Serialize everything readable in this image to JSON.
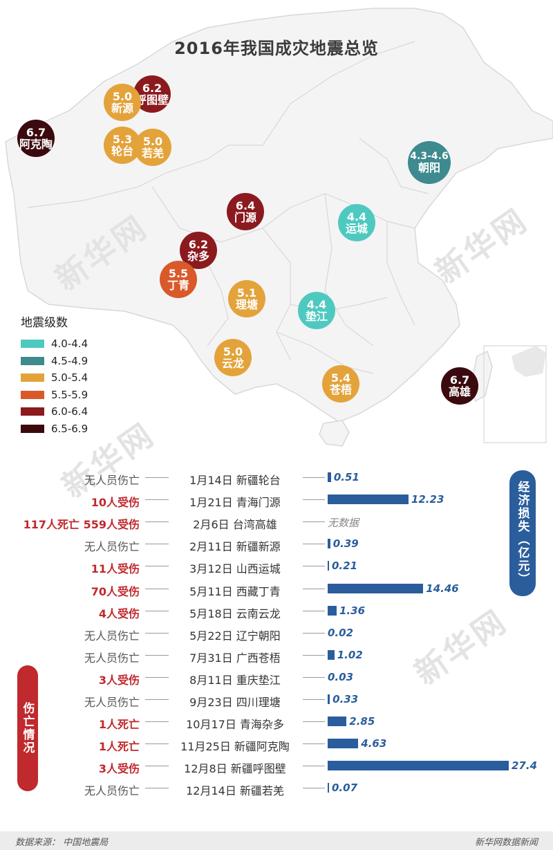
{
  "title": "2016年我国成灾地震总览",
  "watermarks": [
    "新华网",
    "新华网",
    "新华网",
    "新华网"
  ],
  "legend": {
    "title": "地震级数",
    "items": [
      {
        "label": "4.0-4.4",
        "color": "#4ec9c0"
      },
      {
        "label": "4.5-4.9",
        "color": "#3e8a8f"
      },
      {
        "label": "5.0-5.4",
        "color": "#e3a33a"
      },
      {
        "label": "5.5-5.9",
        "color": "#d9592a"
      },
      {
        "label": "6.0-6.4",
        "color": "#8b1a1f"
      },
      {
        "label": "6.5-6.9",
        "color": "#3b0a0e"
      }
    ]
  },
  "map_markers": [
    {
      "mag": "6.2",
      "place": "呼图壁",
      "level": 4
    },
    {
      "mag": "5.0",
      "place": "新源",
      "level": 2
    },
    {
      "mag": "6.7",
      "place": "阿克陶",
      "level": 5
    },
    {
      "mag": "5.3",
      "place": "轮台",
      "level": 2
    },
    {
      "mag": "5.0",
      "place": "若羌",
      "level": 2
    },
    {
      "mag": "4.3-4.6",
      "place": "朝阳",
      "level": 1
    },
    {
      "mag": "6.4",
      "place": "门源",
      "level": 4
    },
    {
      "mag": "4.4",
      "place": "运城",
      "level": 0
    },
    {
      "mag": "6.2",
      "place": "杂多",
      "level": 4
    },
    {
      "mag": "5.5",
      "place": "丁青",
      "level": 3
    },
    {
      "mag": "5.1",
      "place": "理塘",
      "level": 2
    },
    {
      "mag": "4.4",
      "place": "垫江",
      "level": 0
    },
    {
      "mag": "5.0",
      "place": "云龙",
      "level": 2
    },
    {
      "mag": "5.4",
      "place": "苍梧",
      "level": 2
    },
    {
      "mag": "6.7",
      "place": "高雄",
      "level": 5
    }
  ],
  "side_labels": {
    "economic": "经济损失（亿元）",
    "casualty": "伤亡情况"
  },
  "chart_data": {
    "type": "bar",
    "title": "2016年我国成灾地震总览",
    "series": [
      {
        "name": "经济损失（亿元）",
        "values": [
          0.51,
          12.23,
          null,
          0.39,
          0.21,
          14.46,
          1.36,
          0.02,
          1.02,
          0.03,
          0.33,
          2.85,
          4.63,
          27.4,
          0.07
        ]
      }
    ],
    "categories": [
      "1月14日 新疆轮台",
      "1月21日 青海门源",
      "2月6日 台湾高雄",
      "2月11日 新疆新源",
      "3月12日 山西运城",
      "5月11日 西藏丁青",
      "5月18日 云南云龙",
      "5月22日 辽宁朝阳",
      "7月31日 广西苍梧",
      "8月11日 重庆垫江",
      "9月23日 四川理塘",
      "10月17日 青海杂多",
      "11月25日 新疆阿克陶",
      "12月8日 新疆呼图壁",
      "12月14日 新疆若羌"
    ],
    "rows": [
      {
        "casualty": "无人员伤亡",
        "red": false,
        "event": "1月14日 新疆轮台",
        "loss": 0.51,
        "label": "0.51"
      },
      {
        "casualty": "10人受伤",
        "red": true,
        "event": "1月21日 青海门源",
        "loss": 12.23,
        "label": "12.23"
      },
      {
        "casualty": "117人死亡 559人受伤",
        "red": true,
        "event": "2月6日 台湾高雄",
        "loss": null,
        "label": "无数据"
      },
      {
        "casualty": "无人员伤亡",
        "red": false,
        "event": "2月11日 新疆新源",
        "loss": 0.39,
        "label": "0.39"
      },
      {
        "casualty": "11人受伤",
        "red": true,
        "event": "3月12日 山西运城",
        "loss": 0.21,
        "label": "0.21"
      },
      {
        "casualty": "70人受伤",
        "red": true,
        "event": "5月11日 西藏丁青",
        "loss": 14.46,
        "label": "14.46"
      },
      {
        "casualty": "4人受伤",
        "red": true,
        "event": "5月18日 云南云龙",
        "loss": 1.36,
        "label": "1.36"
      },
      {
        "casualty": "无人员伤亡",
        "red": false,
        "event": "5月22日 辽宁朝阳",
        "loss": 0.02,
        "label": "0.02"
      },
      {
        "casualty": "无人员伤亡",
        "red": false,
        "event": "7月31日 广西苍梧",
        "loss": 1.02,
        "label": "1.02"
      },
      {
        "casualty": "3人受伤",
        "red": true,
        "event": "8月11日 重庆垫江",
        "loss": 0.03,
        "label": "0.03"
      },
      {
        "casualty": "无人员伤亡",
        "red": false,
        "event": "9月23日 四川理塘",
        "loss": 0.33,
        "label": "0.33"
      },
      {
        "casualty": "1人死亡",
        "red": true,
        "event": "10月17日 青海杂多",
        "loss": 2.85,
        "label": "2.85"
      },
      {
        "casualty": "1人死亡",
        "red": true,
        "event": "11月25日 新疆阿克陶",
        "loss": 4.63,
        "label": "4.63"
      },
      {
        "casualty": "3人受伤",
        "red": true,
        "event": "12月8日 新疆呼图壁",
        "loss": 27.4,
        "label": "27.4"
      },
      {
        "casualty": "无人员伤亡",
        "red": false,
        "event": "12月14日 新疆若羌",
        "loss": 0.07,
        "label": "0.07"
      }
    ],
    "xlim": [
      0,
      27.4
    ],
    "bar_color": "#2a5d9c",
    "casualty_red_color": "#c0292d"
  },
  "footer": {
    "source": "数据来源： 中国地震局",
    "brand": "新华网数据新闻"
  }
}
